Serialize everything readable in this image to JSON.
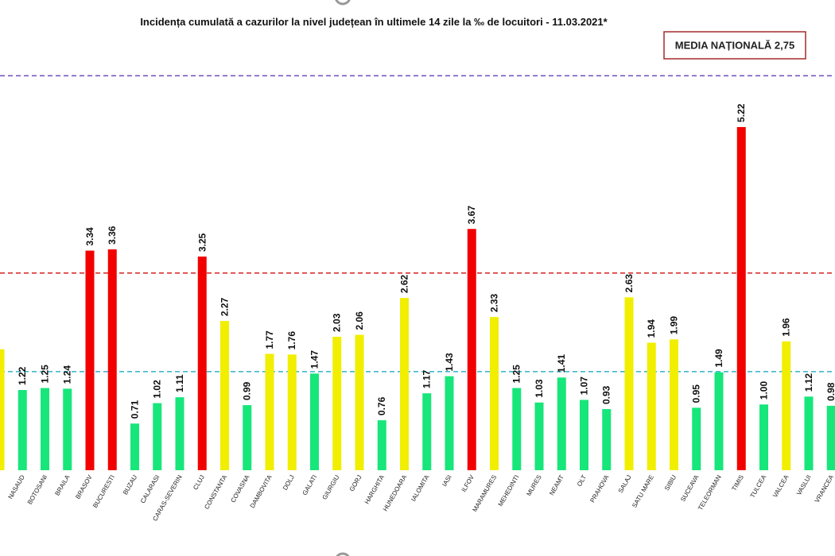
{
  "chart_data": {
    "type": "bar",
    "title": "Incidența cumulată a cazurilor la nivel județean în ultimele 14 zile la ‰ de locuitori - 11.03.2021*",
    "annotation": "MEDIA NAȚIONALĂ 2,75",
    "categories": [
      null,
      "NASAUD",
      "BOTOSANI",
      "BRAILA",
      "BRASOV",
      "BUCURESTI",
      "BUZAU",
      "CALARASI",
      "CARAS-SEVERIN",
      "CLUJ",
      "CONSTANTA",
      "COVASNA",
      "DAMBOVITA",
      "DOLJ",
      "GALATI",
      "GIURGIU",
      "GORJ",
      "HARGHITA",
      "HUNEDOARA",
      "IALOMITA",
      "IASI",
      "ILFOV",
      "MARAMURES",
      "MEHEDINTI",
      "MURES",
      "NEAMT",
      "OLT",
      "PRAHOVA",
      "SALAJ",
      "SATU MARE",
      "SIBIU",
      "SUCEAVA",
      "TELEORMAN",
      "TIMIS",
      "TULCEA",
      "VALCEA",
      "VASLUI",
      "VRANCEA"
    ],
    "values": [
      1.84,
      1.22,
      1.25,
      1.24,
      3.34,
      3.36,
      0.71,
      1.02,
      1.11,
      3.25,
      2.27,
      0.99,
      1.77,
      1.76,
      1.47,
      2.03,
      2.06,
      0.76,
      2.62,
      1.17,
      1.43,
      3.67,
      2.33,
      1.25,
      1.03,
      1.41,
      1.07,
      0.93,
      2.63,
      1.94,
      1.99,
      0.95,
      1.49,
      5.22,
      1.0,
      1.96,
      1.12,
      0.98
    ],
    "value_labels": [
      null,
      "1.22",
      "1.25",
      "1.24",
      "3.34",
      "3.36",
      "0.71",
      "1.02",
      "1.11",
      "3.25",
      "2.27",
      "0.99",
      "1.77",
      "1.76",
      "1.47",
      "2.03",
      "2.06",
      "0.76",
      "2.62",
      "1.17",
      "1.43",
      "3.67",
      "2.33",
      "1.25",
      "1.03",
      "1.41",
      "1.07",
      "0.93",
      "2.63",
      "1.94",
      "1.99",
      "0.95",
      "1.49",
      "5.22",
      "1.00",
      "1.96",
      "1.12",
      "0.98"
    ],
    "colors": [
      "#f2ee00",
      "#17e67a",
      "#17e67a",
      "#17e67a",
      "#f20000",
      "#f20000",
      "#17e67a",
      "#17e67a",
      "#17e67a",
      "#f20000",
      "#f2ee00",
      "#17e67a",
      "#f2ee00",
      "#f2ee00",
      "#17e67a",
      "#f2ee00",
      "#f2ee00",
      "#17e67a",
      "#f2ee00",
      "#17e67a",
      "#17e67a",
      "#f20000",
      "#f2ee00",
      "#17e67a",
      "#17e67a",
      "#17e67a",
      "#17e67a",
      "#17e67a",
      "#f2ee00",
      "#f2ee00",
      "#f2ee00",
      "#17e67a",
      "#17e67a",
      "#f20000",
      "#17e67a",
      "#f2ee00",
      "#17e67a",
      "#17e67a"
    ],
    "reference_lines": [
      {
        "value": 6,
        "color": "#6a4fc0"
      },
      {
        "value": 3,
        "color": "#d42020"
      },
      {
        "value": 1.5,
        "color": "#2fb4c8"
      }
    ],
    "ylim": [
      0,
      6.5
    ]
  }
}
